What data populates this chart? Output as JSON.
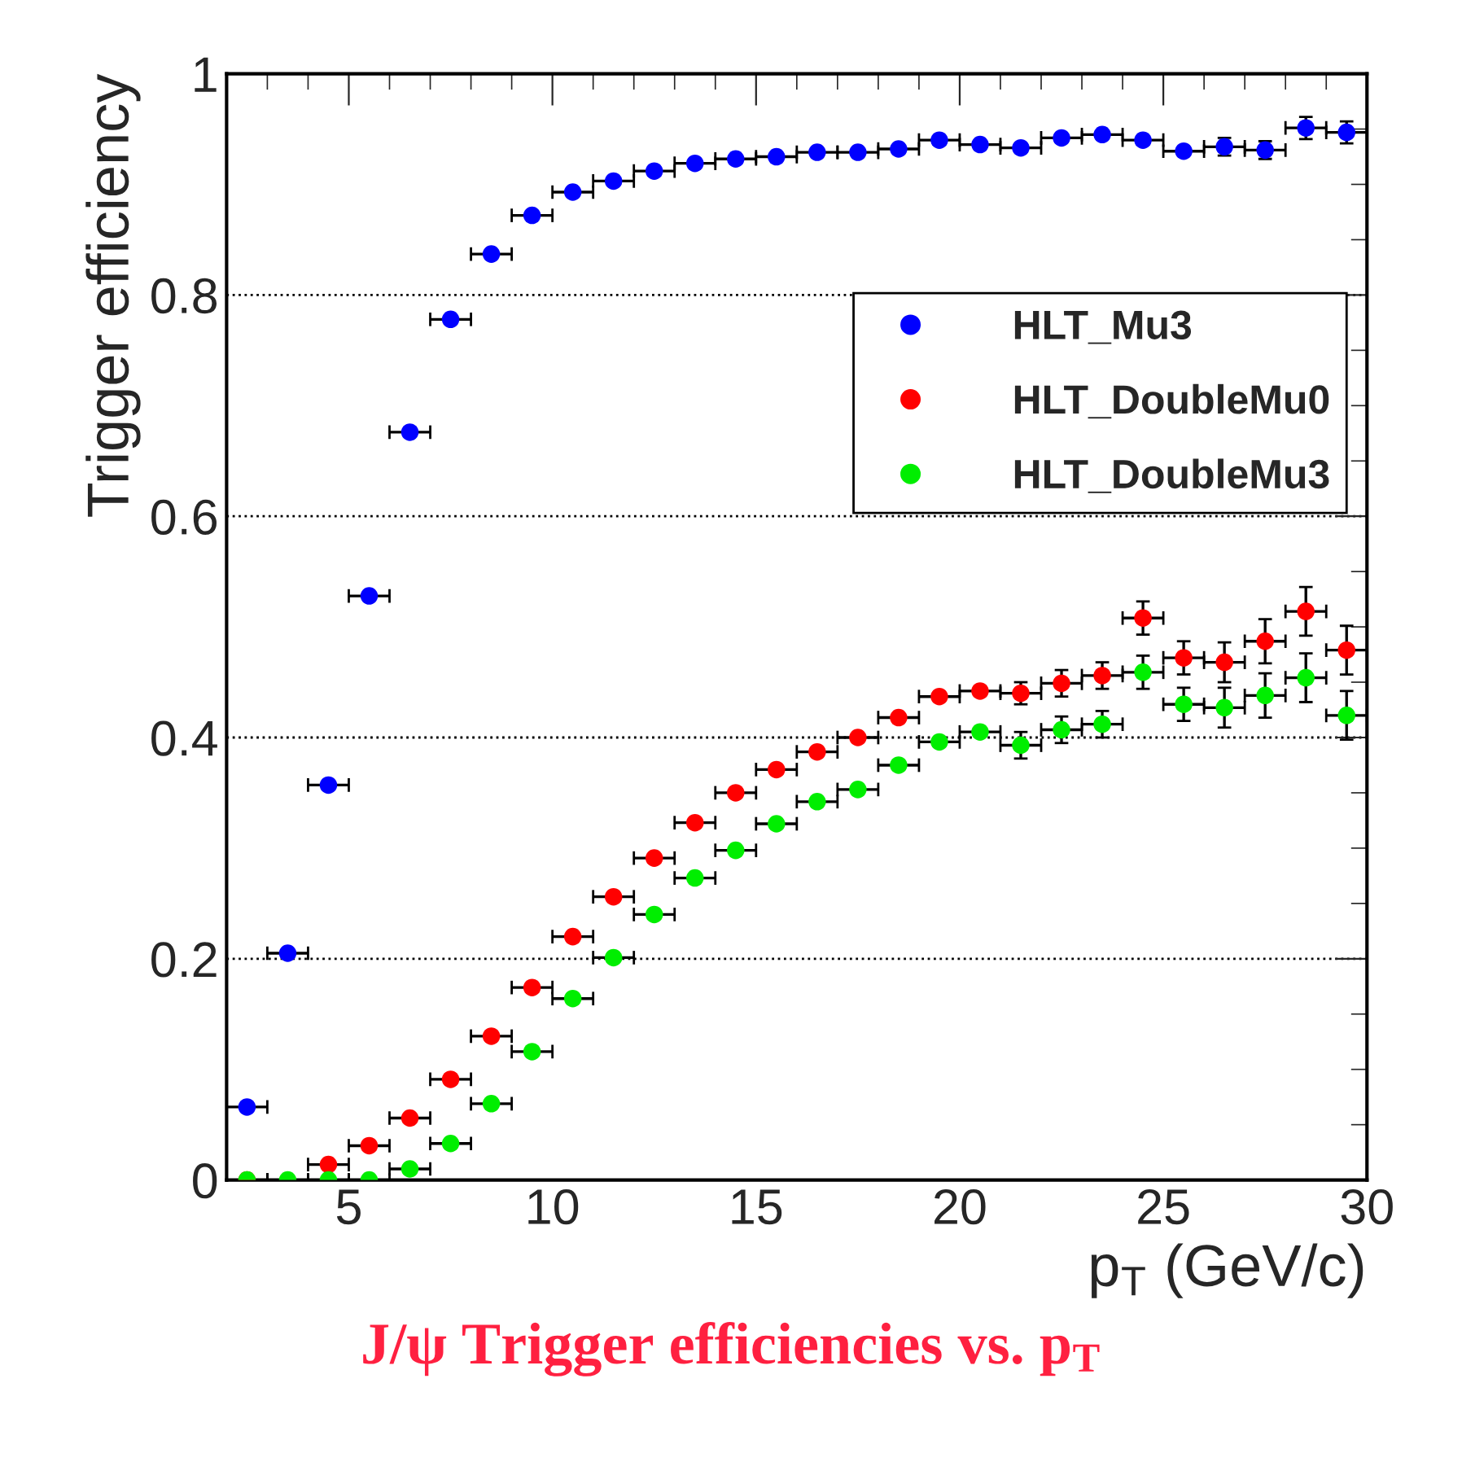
{
  "chart_data": {
    "type": "scatter",
    "xlabel": "p$_{T}$ (GeV/c)",
    "ylabel": "Trigger efficiency",
    "annotations": [
      "J/ψ Trigger efficiencies vs. p$_{T}$"
    ],
    "x": [
      2.5,
      3.5,
      4.5,
      5.5,
      6.5,
      7.5,
      8.5,
      9.5,
      10.5,
      11.5,
      12.5,
      13.5,
      14.5,
      15.5,
      16.5,
      17.5,
      18.5,
      19.5,
      20.5,
      21.5,
      22.5,
      23.5,
      24.5,
      25.5,
      26.5,
      27.5,
      28.5,
      29.5
    ],
    "series": [
      {
        "name": "HLT_Mu3",
        "color": "#0000ff",
        "values": [
          0.066,
          0.205,
          0.357,
          0.528,
          0.676,
          0.778,
          0.837,
          0.872,
          0.893,
          0.903,
          0.912,
          0.919,
          0.923,
          0.925,
          0.929,
          0.929,
          0.932,
          0.94,
          0.936,
          0.933,
          0.942,
          0.945,
          0.94,
          0.93,
          0.934,
          0.931,
          0.951,
          0.947
        ],
        "errors": [
          null,
          null,
          null,
          null,
          null,
          null,
          null,
          null,
          null,
          null,
          null,
          null,
          null,
          null,
          null,
          null,
          null,
          null,
          null,
          null,
          null,
          null,
          null,
          null,
          0.008,
          0.008,
          0.01,
          0.01
        ],
        "xerrors": [
          0.5,
          0.5,
          0.5,
          0.5,
          0.5,
          0.5,
          0.5,
          0.5,
          0.5,
          0.5,
          0.5,
          0.5,
          0.5,
          0.5,
          0.5,
          0.5,
          0.5,
          0.5,
          0.5,
          0.5,
          0.5,
          0.5,
          0.5,
          0.5,
          0.5,
          0.5,
          0.5,
          0.5
        ]
      },
      {
        "name": "HLT_DoubleMu0",
        "color": "#ff0000",
        "values": [
          0.0,
          null,
          0.014,
          0.031,
          0.056,
          0.091,
          0.13,
          0.174,
          0.22,
          0.256,
          0.291,
          0.323,
          0.35,
          0.371,
          0.387,
          0.4,
          0.418,
          0.437,
          0.442,
          0.44,
          0.449,
          0.456,
          0.508,
          0.472,
          0.468,
          0.487,
          0.514,
          0.479
        ],
        "errors": [
          null,
          null,
          null,
          null,
          null,
          null,
          null,
          null,
          null,
          null,
          null,
          null,
          null,
          null,
          null,
          null,
          null,
          null,
          null,
          0.01,
          0.012,
          0.012,
          0.015,
          0.015,
          0.018,
          0.02,
          0.022,
          0.022
        ],
        "xerrors": [
          0.5,
          null,
          0.5,
          0.5,
          0.5,
          0.5,
          0.5,
          0.5,
          0.5,
          0.5,
          0.5,
          0.5,
          0.5,
          0.5,
          0.5,
          0.5,
          0.5,
          0.5,
          0.5,
          0.5,
          0.5,
          0.5,
          0.5,
          0.5,
          0.5,
          0.5,
          0.5,
          0.5
        ]
      },
      {
        "name": "HLT_DoubleMu3",
        "color": "#00ee00",
        "values": [
          0.0,
          0.0,
          0.0,
          0.0,
          0.01,
          0.033,
          0.069,
          0.116,
          0.164,
          0.201,
          0.24,
          0.273,
          0.298,
          0.322,
          0.342,
          0.353,
          0.375,
          0.396,
          0.405,
          0.393,
          0.407,
          0.412,
          0.459,
          0.43,
          0.427,
          0.438,
          0.454,
          0.42
        ],
        "errors": [
          null,
          null,
          null,
          null,
          null,
          null,
          null,
          null,
          null,
          null,
          null,
          null,
          null,
          null,
          null,
          null,
          null,
          null,
          null,
          0.012,
          0.012,
          0.012,
          0.015,
          0.015,
          0.018,
          0.02,
          0.022,
          0.022
        ],
        "xerrors": [
          0.5,
          0.5,
          0.5,
          0.5,
          0.5,
          0.5,
          0.5,
          0.5,
          0.5,
          0.5,
          0.5,
          0.5,
          0.5,
          0.5,
          0.5,
          0.5,
          0.5,
          0.5,
          0.5,
          0.5,
          0.5,
          0.5,
          0.5,
          0.5,
          0.5,
          0.5,
          0.5,
          0.5
        ]
      }
    ],
    "xlim": [
      2,
      30
    ],
    "xticks": [
      5,
      10,
      15,
      20,
      25,
      30
    ],
    "ylim": [
      0,
      1
    ],
    "yticks": [
      0,
      0.2,
      0.4,
      0.6,
      0.8,
      1
    ],
    "grid": "y",
    "legend": "top right",
    "marker": "circle"
  }
}
